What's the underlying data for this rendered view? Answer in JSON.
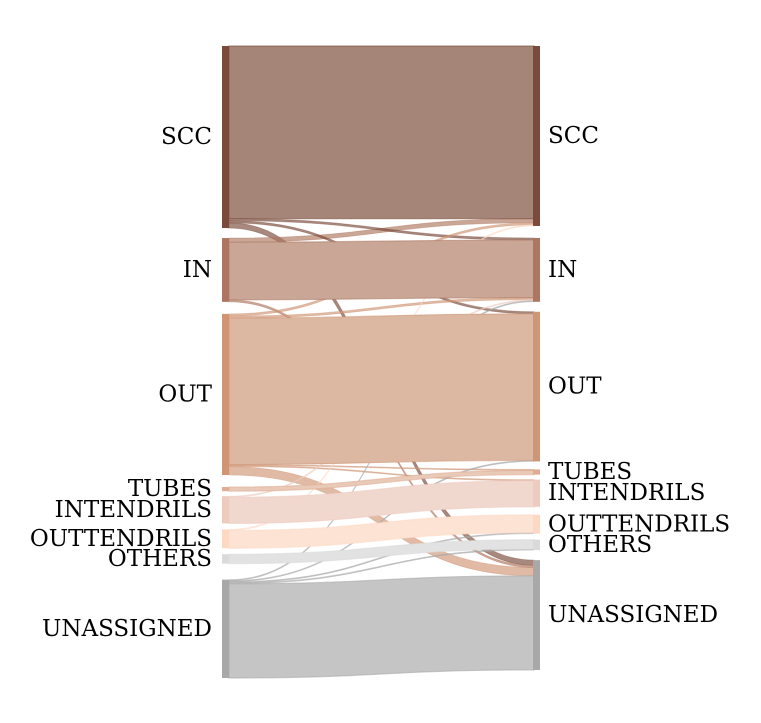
{
  "diagram": {
    "type": "sankey",
    "left_nodes": [
      {
        "id": "SCC",
        "label": "SCC",
        "color": "#7a4a3a",
        "fill": "#a48577"
      },
      {
        "id": "IN",
        "label": "IN",
        "color": "#ad7660",
        "fill": "#c9a696"
      },
      {
        "id": "OUT",
        "label": "OUT",
        "color": "#cf9575",
        "fill": "#dcb8a3"
      },
      {
        "id": "TUBES",
        "label": "TUBES",
        "color": "#e0ad94",
        "fill": "#e9c9b8"
      },
      {
        "id": "INTENDRILS",
        "label": "INTENDRILS",
        "color": "#eecbbf",
        "fill": "#f1d8cf"
      },
      {
        "id": "OUTTENDRILS",
        "label": "OUTTENDRILS",
        "color": "#fdd9c4",
        "fill": "#fde3d3"
      },
      {
        "id": "OTHERS",
        "label": "OTHERS",
        "color": "#dadada",
        "fill": "#e2e2e2"
      },
      {
        "id": "UNASSIGNED",
        "label": "UNASSIGNED",
        "color": "#a8a8a8",
        "fill": "#c5c5c5"
      }
    ],
    "right_nodes": [
      {
        "id": "SCC",
        "label": "SCC",
        "color": "#7a4a3a"
      },
      {
        "id": "IN",
        "label": "IN",
        "color": "#ad7660"
      },
      {
        "id": "OUT",
        "label": "OUT",
        "color": "#cf9575"
      },
      {
        "id": "TUBES",
        "label": "TUBES",
        "color": "#e0ad94"
      },
      {
        "id": "INTENDRILS",
        "label": "INTENDRILS",
        "color": "#eecbbf"
      },
      {
        "id": "OUTTENDRILS",
        "label": "OUTTENDRILS",
        "color": "#fdd9c4"
      },
      {
        "id": "OTHERS",
        "label": "OTHERS",
        "color": "#dadada"
      },
      {
        "id": "UNASSIGNED",
        "label": "UNASSIGNED",
        "color": "#a8a8a8"
      }
    ],
    "flows": [
      {
        "from": "SCC",
        "to": "SCC",
        "value": 165
      },
      {
        "from": "SCC",
        "to": "IN",
        "value": 2
      },
      {
        "from": "SCC",
        "to": "OUT",
        "value": 2
      },
      {
        "from": "SCC",
        "to": "UNASSIGNED",
        "value": 5
      },
      {
        "from": "IN",
        "to": "SCC",
        "value": 4
      },
      {
        "from": "IN",
        "to": "IN",
        "value": 55
      },
      {
        "from": "IN",
        "to": "UNASSIGNED",
        "value": 2
      },
      {
        "from": "OUT",
        "to": "SCC",
        "value": 2
      },
      {
        "from": "OUT",
        "to": "IN",
        "value": 2
      },
      {
        "from": "OUT",
        "to": "OUT",
        "value": 140
      },
      {
        "from": "OUT",
        "to": "TUBES",
        "value": 1
      },
      {
        "from": "OUT",
        "to": "INTENDRILS",
        "value": 1
      },
      {
        "from": "OUT",
        "to": "UNASSIGNED",
        "value": 8
      },
      {
        "from": "TUBES",
        "to": "TUBES",
        "value": 4
      },
      {
        "from": "INTENDRILS",
        "to": "IN",
        "value": 1
      },
      {
        "from": "INTENDRILS",
        "to": "INTENDRILS",
        "value": 25
      },
      {
        "from": "OUTTENDRILS",
        "to": "SCC",
        "value": 1
      },
      {
        "from": "OUTTENDRILS",
        "to": "OUTTENDRILS",
        "value": 17
      },
      {
        "from": "OTHERS",
        "to": "OTHERS",
        "value": 9
      },
      {
        "from": "UNASSIGNED",
        "to": "IN",
        "value": 1
      },
      {
        "from": "UNASSIGNED",
        "to": "OUT",
        "value": 1
      },
      {
        "from": "UNASSIGNED",
        "to": "OUTTENDRILS",
        "value": 1
      },
      {
        "from": "UNASSIGNED",
        "to": "OTHERS",
        "value": 1
      },
      {
        "from": "UNASSIGNED",
        "to": "UNASSIGNED",
        "value": 90
      }
    ]
  }
}
